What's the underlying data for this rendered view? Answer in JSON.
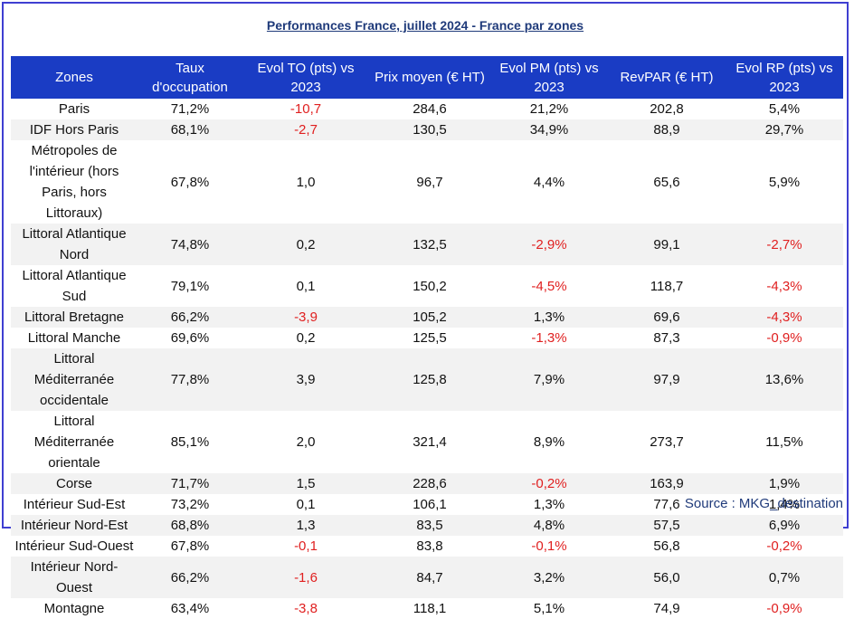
{
  "title": "Performances France, juillet 2024 - France par zones",
  "source": "Source : MKG_destination",
  "colors": {
    "header_bg": "#1a3cc4",
    "negative": "#e02020",
    "title": "#1f3a7a",
    "frame_border": "#3f3fd1",
    "stripe": "#f2f2f2"
  },
  "columns": [
    "Zones",
    "Taux d'occupation",
    "Evol TO (pts) vs 2023",
    "Prix moyen (€ HT)",
    "Evol PM (pts) vs 2023",
    "RevPAR (€ HT)",
    "Evol RP (pts) vs 2023"
  ],
  "rows": [
    {
      "zone": "Paris",
      "to": "71,2%",
      "evol_to": "-10,7",
      "pm": "284,6",
      "evol_pm": "21,2%",
      "revpar": "202,8",
      "evol_rp": "5,4%"
    },
    {
      "zone": "IDF Hors Paris",
      "to": "68,1%",
      "evol_to": "-2,7",
      "pm": "130,5",
      "evol_pm": "34,9%",
      "revpar": "88,9",
      "evol_rp": "29,7%"
    },
    {
      "zone": "Métropoles de l'intérieur (hors Paris, hors Littoraux)",
      "to": "67,8%",
      "evol_to": "1,0",
      "pm": "96,7",
      "evol_pm": "4,4%",
      "revpar": "65,6",
      "evol_rp": "5,9%"
    },
    {
      "zone": "Littoral Atlantique Nord",
      "to": "74,8%",
      "evol_to": "0,2",
      "pm": "132,5",
      "evol_pm": "-2,9%",
      "revpar": "99,1",
      "evol_rp": "-2,7%"
    },
    {
      "zone": "Littoral Atlantique Sud",
      "to": "79,1%",
      "evol_to": "0,1",
      "pm": "150,2",
      "evol_pm": "-4,5%",
      "revpar": "118,7",
      "evol_rp": "-4,3%"
    },
    {
      "zone": "Littoral Bretagne",
      "to": "66,2%",
      "evol_to": "-3,9",
      "pm": "105,2",
      "evol_pm": "1,3%",
      "revpar": "69,6",
      "evol_rp": "-4,3%"
    },
    {
      "zone": "Littoral Manche",
      "to": "69,6%",
      "evol_to": "0,2",
      "pm": "125,5",
      "evol_pm": "-1,3%",
      "revpar": "87,3",
      "evol_rp": "-0,9%"
    },
    {
      "zone": "Littoral Méditerranée occidentale",
      "to": "77,8%",
      "evol_to": "3,9",
      "pm": "125,8",
      "evol_pm": "7,9%",
      "revpar": "97,9",
      "evol_rp": "13,6%"
    },
    {
      "zone": "Littoral Méditerranée orientale",
      "to": "85,1%",
      "evol_to": "2,0",
      "pm": "321,4",
      "evol_pm": "8,9%",
      "revpar": "273,7",
      "evol_rp": "11,5%"
    },
    {
      "zone": "Corse",
      "to": "71,7%",
      "evol_to": "1,5",
      "pm": "228,6",
      "evol_pm": "-0,2%",
      "revpar": "163,9",
      "evol_rp": "1,9%"
    },
    {
      "zone": "Intérieur Sud-Est",
      "to": "73,2%",
      "evol_to": "0,1",
      "pm": "106,1",
      "evol_pm": "1,3%",
      "revpar": "77,6",
      "evol_rp": "1,4%"
    },
    {
      "zone": "Intérieur Nord-Est",
      "to": "68,8%",
      "evol_to": "1,3",
      "pm": "83,5",
      "evol_pm": "4,8%",
      "revpar": "57,5",
      "evol_rp": "6,9%"
    },
    {
      "zone": "Intérieur Sud-Ouest",
      "to": "67,8%",
      "evol_to": "-0,1",
      "pm": "83,8",
      "evol_pm": "-0,1%",
      "revpar": "56,8",
      "evol_rp": "-0,2%"
    },
    {
      "zone": "Intérieur Nord-Ouest",
      "to": "66,2%",
      "evol_to": "-1,6",
      "pm": "84,7",
      "evol_pm": "3,2%",
      "revpar": "56,0",
      "evol_rp": "0,7%"
    },
    {
      "zone": "Montagne",
      "to": "63,4%",
      "evol_to": "-3,8",
      "pm": "118,1",
      "evol_pm": "5,1%",
      "revpar": "74,9",
      "evol_rp": "-0,9%"
    }
  ]
}
